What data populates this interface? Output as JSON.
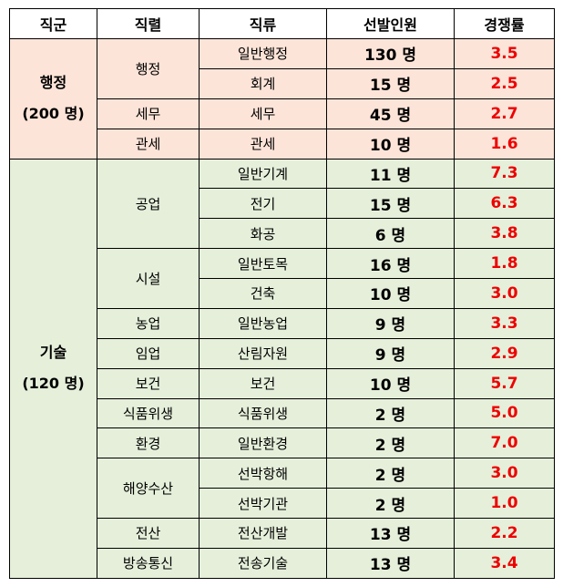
{
  "headers": [
    "직군",
    "직렬",
    "직류",
    "선발인원",
    "경쟁률"
  ],
  "groups": [
    {
      "name": "행정",
      "total": "(200 명)"
    },
    {
      "name": "기술",
      "total": "(120 명)"
    }
  ],
  "rows": [
    {
      "series": "행정",
      "category": "일반행정",
      "count": "130 명",
      "rate": "3.5"
    },
    {
      "series": "",
      "category": "회계",
      "count": "15 명",
      "rate": "2.5"
    },
    {
      "series": "세무",
      "category": "세무",
      "count": "45 명",
      "rate": "2.7"
    },
    {
      "series": "관세",
      "category": "관세",
      "count": "10 명",
      "rate": "1.6"
    },
    {
      "series": "공업",
      "category": "일반기계",
      "count": "11 명",
      "rate": "7.3"
    },
    {
      "series": "",
      "category": "전기",
      "count": "15 명",
      "rate": "6.3"
    },
    {
      "series": "",
      "category": "화공",
      "count": "6 명",
      "rate": "3.8"
    },
    {
      "series": "시설",
      "category": "일반토목",
      "count": "16 명",
      "rate": "1.8"
    },
    {
      "series": "",
      "category": "건축",
      "count": "10 명",
      "rate": "3.0"
    },
    {
      "series": "농업",
      "category": "일반농업",
      "count": "9 명",
      "rate": "3.3"
    },
    {
      "series": "임업",
      "category": "산림자원",
      "count": "9 명",
      "rate": "2.9"
    },
    {
      "series": "보건",
      "category": "보건",
      "count": "10 명",
      "rate": "5.7"
    },
    {
      "series": "식품위생",
      "category": "식품위생",
      "count": "2 명",
      "rate": "5.0"
    },
    {
      "series": "환경",
      "category": "일반환경",
      "count": "2 명",
      "rate": "7.0"
    },
    {
      "series": "해양수산",
      "category": "선박항해",
      "count": "2 명",
      "rate": "3.0"
    },
    {
      "series": "",
      "category": "선박기관",
      "count": "2 명",
      "rate": "1.0"
    },
    {
      "series": "전산",
      "category": "전산개발",
      "count": "13 명",
      "rate": "2.2"
    },
    {
      "series": "방송통신",
      "category": "전송기술",
      "count": "13 명",
      "rate": "3.4"
    }
  ],
  "colors": {
    "admin_bg": "#fde4d8",
    "tech_bg": "#e5efda",
    "rate_text": "#ee0000"
  }
}
